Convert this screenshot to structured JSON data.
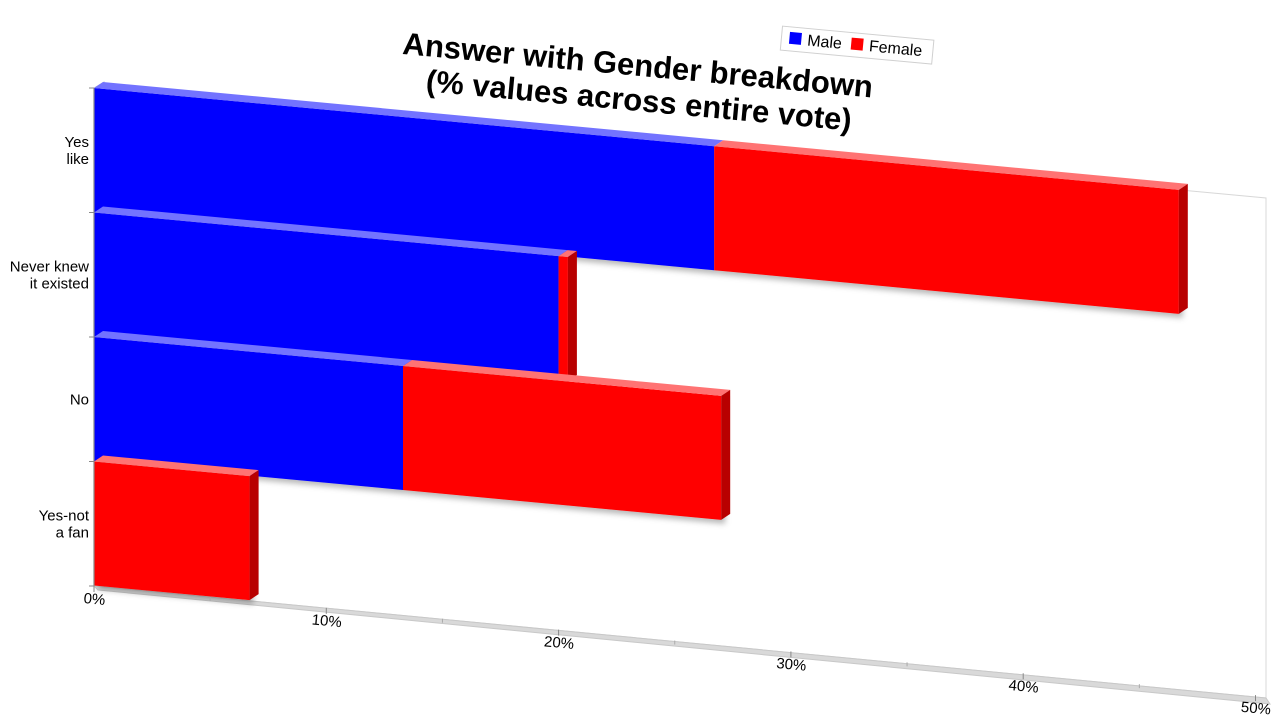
{
  "chart_data": {
    "type": "bar",
    "orientation": "horizontal",
    "stacked": true,
    "title": "Answer with Gender breakdown\n(% values across entire vote)",
    "categories": [
      "Yes\nlike",
      "Never knew\nit existed",
      "No",
      "Yes-not\na fan"
    ],
    "series": [
      {
        "name": "Male",
        "color": "#0000ff",
        "values": [
          26.7,
          20.0,
          13.3,
          0
        ]
      },
      {
        "name": "Female",
        "color": "#ff0000",
        "values": [
          20.0,
          0.4,
          13.7,
          6.7
        ]
      }
    ],
    "x_ticks": [
      "0%",
      "10%",
      "20%",
      "30%",
      "40%",
      "50%"
    ],
    "xlim": [
      0,
      50
    ],
    "legend_position": "top-right",
    "grid": false
  }
}
